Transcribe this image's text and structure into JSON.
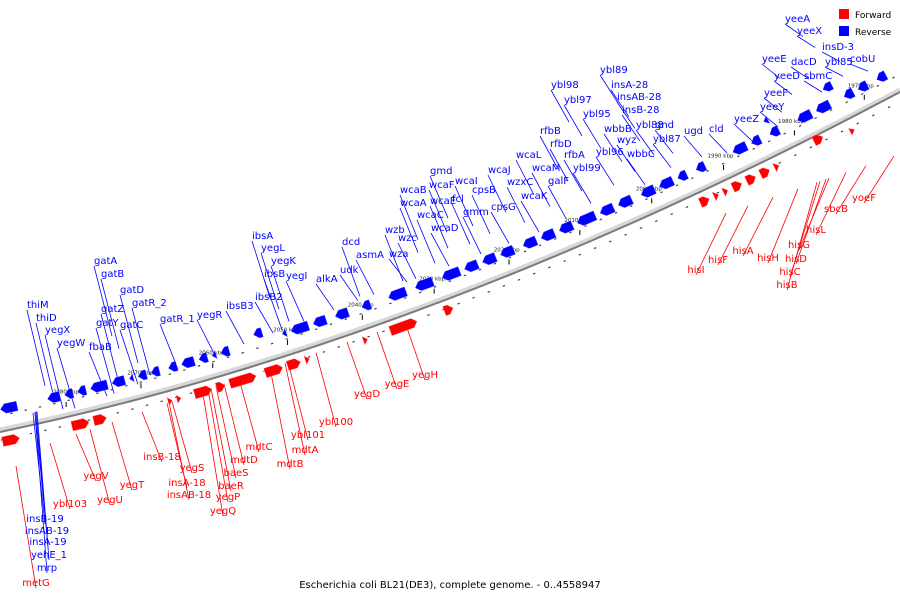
{
  "colors": {
    "forward": "#ff0000",
    "reverse": "#0000ff",
    "axis_light": "#d8d8d8",
    "axis_dark": "#7a7a7a",
    "tick": "#000000",
    "text": "#000000"
  },
  "legend": {
    "forward_label": "Forward",
    "reverse_label": "Reverse"
  },
  "caption": "Escherichia coli BL21(DE3), complete genome. - 0..4558947",
  "ticks": [
    "2080 kbp",
    "2070 kbp",
    "2060 kbp",
    "2050 kbp",
    "2040 kbp",
    "2030 kbp",
    "2020 kbp",
    "2010 kbp",
    "2000 kbp",
    "1990 kbp",
    "1980 kbp",
    "1970 kbp"
  ],
  "reverse_genes": [
    "thiM",
    "thiD",
    "yegX",
    "yegW",
    "fbaB",
    "gatA",
    "gatB",
    "gatZ",
    "gatD",
    "gatY",
    "gatR_2",
    "gatC",
    "gatR_1",
    "yegR",
    "ibsB3",
    "ibsA",
    "yegL",
    "yegK",
    "ibsB",
    "ibsB2",
    "yegI",
    "alkA",
    "dcd",
    "udk",
    "asmA",
    "wzb",
    "wzc",
    "wza",
    "wcaB",
    "wcaA",
    "wcaF",
    "wcaC",
    "wcaE",
    "gmd",
    "wcaD",
    "wcaI",
    "fcl",
    "gmm",
    "cpsB",
    "wcaJ",
    "cpsG",
    "wcaL",
    "wzxC",
    "wcaM",
    "wcaK",
    "galF",
    "rfbB",
    "rfbD",
    "rfbA",
    "ybl98",
    "ybl97",
    "ybl95",
    "ybl99",
    "ybl96",
    "ybl89",
    "insA-28",
    "insAB-28",
    "wbbB",
    "wyz",
    "insB-28",
    "wbbC",
    "ybl88",
    "gnd",
    "ybl87",
    "ugd",
    "cld",
    "yeeZ",
    "yeeF",
    "yeeY",
    "yeeE",
    "yeeD",
    "dacD",
    "sbmC",
    "yeeA",
    "yeeX",
    "insD-3",
    "ybl85",
    "cobU",
    "insB-19",
    "insAB-19",
    "insA-19",
    "yehE_1",
    "mrp"
  ],
  "forward_genes": [
    "metG",
    "ybl103",
    "yegV",
    "yegU",
    "yegT",
    "insB-18",
    "yegS",
    "insA-18",
    "insAB-18",
    "baeS",
    "baeR",
    "yegP",
    "yegQ",
    "mdtD",
    "mdtC",
    "mdtB",
    "mdtA",
    "ybl101",
    "ybl100",
    "yegD",
    "yegE",
    "yegH",
    "hisI",
    "hisF",
    "hisA",
    "hisH",
    "hisD",
    "hisC",
    "hisB",
    "hisG",
    "hisL",
    "sbcB",
    "yoeF"
  ]
}
